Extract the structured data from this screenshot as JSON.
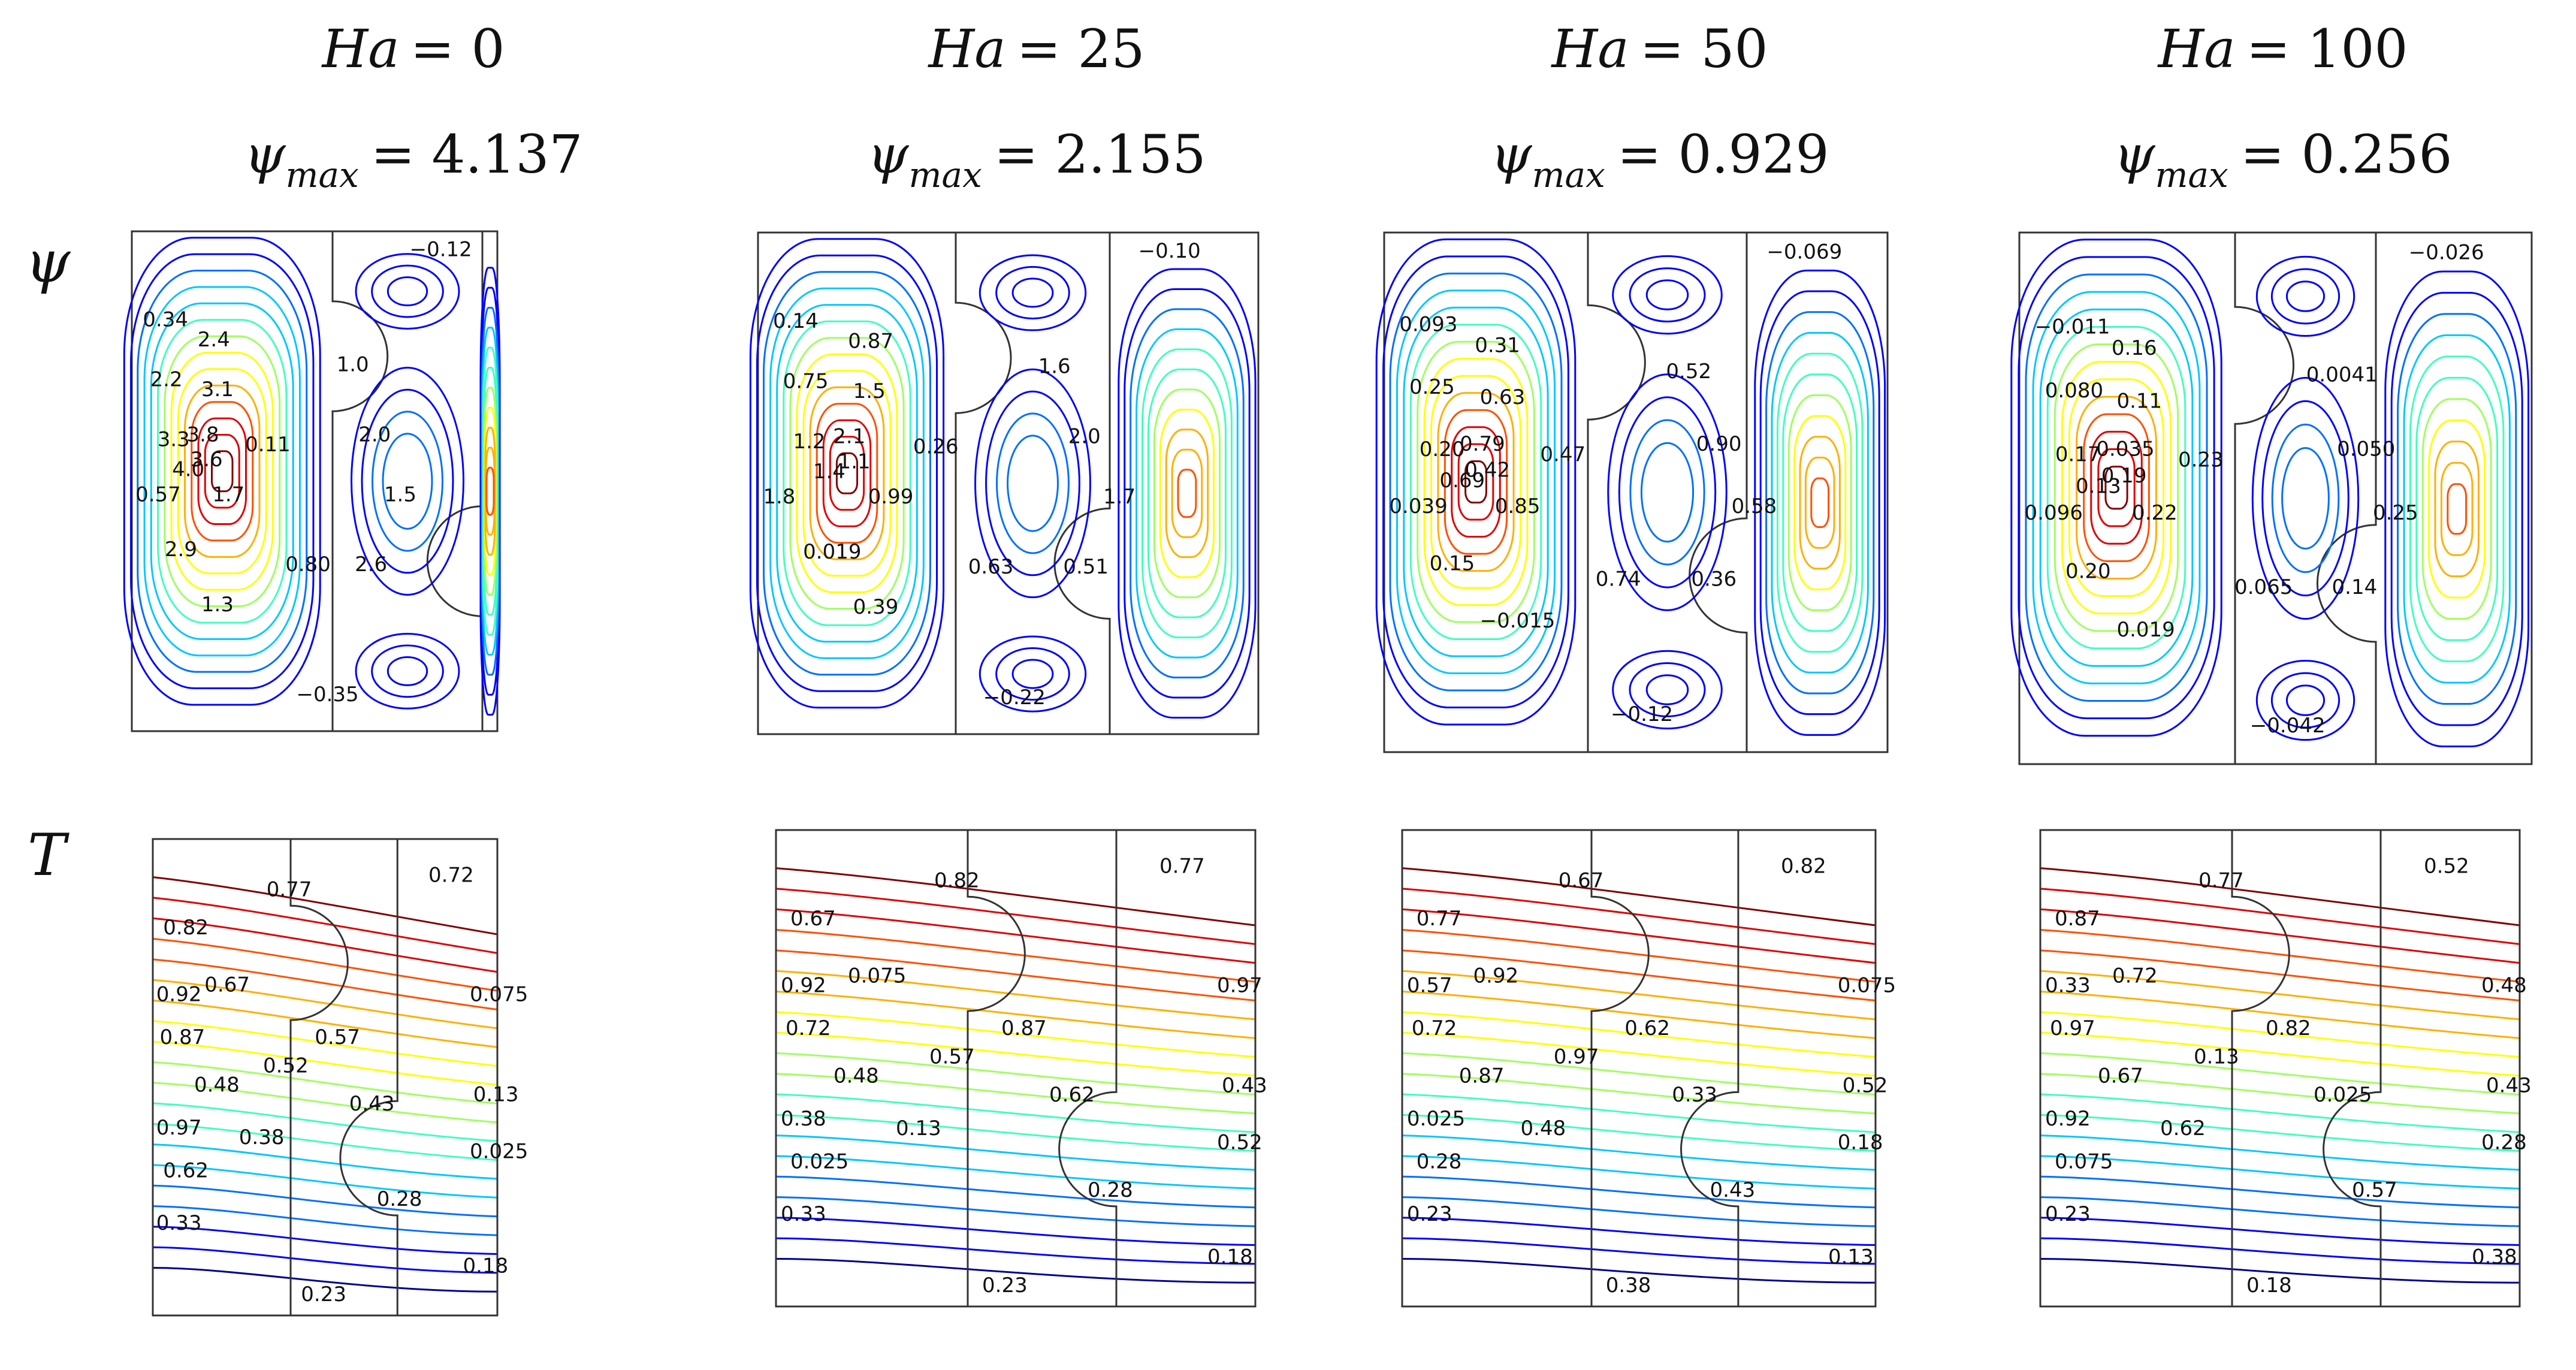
{
  "row_labels": {
    "psi": "ψ",
    "temperature": "T"
  },
  "colors": {
    "scale": [
      "#00008f",
      "#0000ff",
      "#0070ff",
      "#00c8ff",
      "#40ffc0",
      "#a0ff60",
      "#ffff00",
      "#ffb000",
      "#ff5000",
      "#e00000",
      "#800000"
    ],
    "frame": "#333333"
  },
  "panels": [
    {
      "ha": {
        "prefix": "Ha",
        "value": "= 0"
      },
      "psi_max": {
        "value": "= 4.137"
      },
      "psi_labels": [
        "−0.12",
        "0.34",
        "2.4",
        "2.2",
        "3.1",
        "1.0",
        "3.3",
        "3.8",
        "4.0",
        "3.6",
        "0.11",
        "2.0",
        "0.57",
        "1.7",
        "1.5",
        "2.9",
        "0.80",
        "2.6",
        "1.3",
        "−0.35"
      ],
      "t_labels": [
        "0.77",
        "0.72",
        "0.82",
        "0.92",
        "0.67",
        "0.075",
        "0.87",
        "0.57",
        "0.52",
        "0.48",
        "0.13",
        "0.97",
        "0.43",
        "0.38",
        "0.025",
        "0.62",
        "0.28",
        "0.33",
        "0.18",
        "0.23"
      ]
    },
    {
      "ha": {
        "prefix": "Ha",
        "value": "= 25"
      },
      "psi_max": {
        "value": "= 2.155"
      },
      "psi_labels": [
        "−0.10",
        "0.14",
        "0.87",
        "0.75",
        "1.5",
        "1.6",
        "1.2",
        "2.1",
        "1.4",
        "1.1",
        "0.26",
        "2.0",
        "1.8",
        "0.99",
        "1.7",
        "0.019",
        "0.63",
        "0.51",
        "0.39",
        "−0.22"
      ],
      "t_labels": [
        "0.82",
        "0.77",
        "0.67",
        "0.92",
        "0.075",
        "0.97",
        "0.72",
        "0.87",
        "0.57",
        "0.48",
        "0.43",
        "0.38",
        "0.62",
        "0.13",
        "0.52",
        "0.025",
        "0.28",
        "0.33",
        "0.18",
        "0.23"
      ]
    },
    {
      "ha": {
        "prefix": "Ha",
        "value": "= 50"
      },
      "psi_max": {
        "value": "= 0.929"
      },
      "psi_labels": [
        "−0.069",
        "0.093",
        "0.31",
        "0.25",
        "0.63",
        "0.52",
        "0.20",
        "0.79",
        "0.69",
        "0.42",
        "0.47",
        "0.90",
        "0.039",
        "0.85",
        "0.58",
        "0.15",
        "0.74",
        "0.36",
        "−0.015",
        "−0.12"
      ],
      "t_labels": [
        "0.67",
        "0.82",
        "0.77",
        "0.57",
        "0.92",
        "0.075",
        "0.72",
        "0.62",
        "0.97",
        "0.87",
        "0.52",
        "0.025",
        "0.33",
        "0.48",
        "0.18",
        "0.28",
        "0.43",
        "0.23",
        "0.13",
        "0.38"
      ]
    },
    {
      "ha": {
        "prefix": "Ha",
        "value": "= 100"
      },
      "psi_max": {
        "value": "= 0.256"
      },
      "psi_labels": [
        "−0.026",
        "−0.011",
        "0.16",
        "0.080",
        "0.11",
        "0.0041",
        "0.17",
        "0.035",
        "0.13",
        "0.19",
        "0.23",
        "0.050",
        "0.096",
        "0.22",
        "0.25",
        "0.20",
        "0.065",
        "0.14",
        "0.019",
        "−0.042"
      ],
      "t_labels": [
        "0.77",
        "0.52",
        "0.87",
        "0.33",
        "0.72",
        "0.48",
        "0.97",
        "0.82",
        "0.13",
        "0.67",
        "0.43",
        "0.92",
        "0.025",
        "0.62",
        "0.28",
        "0.075",
        "0.57",
        "0.23",
        "0.38",
        "0.18"
      ]
    }
  ]
}
